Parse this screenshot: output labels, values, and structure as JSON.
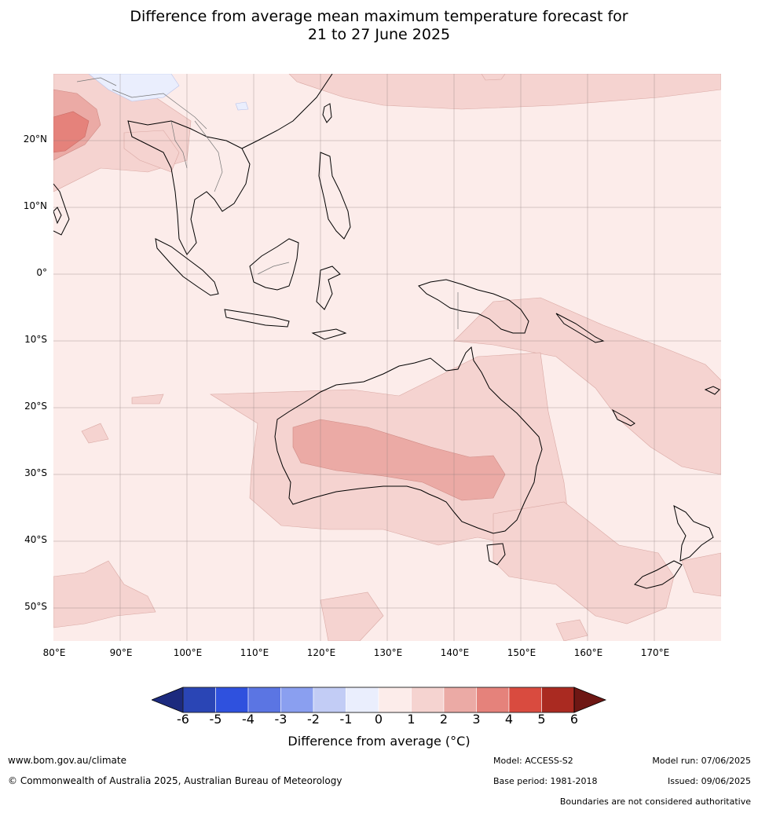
{
  "title_line1": "Difference from average mean maximum temperature forecast for",
  "title_line2": "21 to 27 June 2025",
  "lat_labels": [
    "20°N",
    "10°N",
    "0°",
    "10°S",
    "20°S",
    "30°S",
    "40°S",
    "50°S"
  ],
  "lon_labels": [
    "80°E",
    "90°E",
    "100°E",
    "110°E",
    "120°E",
    "130°E",
    "140°E",
    "150°E",
    "160°E",
    "170°E"
  ],
  "colorbar": {
    "ticks": [
      "-6",
      "-5",
      "-4",
      "-3",
      "-2",
      "-1",
      "0",
      "1",
      "2",
      "3",
      "4",
      "5",
      "6"
    ],
    "colors": [
      "#1c2a7e",
      "#2a45b5",
      "#2f51de",
      "#5b75e3",
      "#8a9ff0",
      "#c2ccf5",
      "#eaeefd",
      "#fcecea",
      "#f5d3d0",
      "#ebaaa5",
      "#e5827b",
      "#d94b3f",
      "#aa2a21",
      "#6e1714"
    ],
    "label": "Difference from average (°C)"
  },
  "footer": {
    "website": "www.bom.gov.au/climate",
    "copyright": "© Commonwealth of Australia 2025, Australian Bureau of Meteorology",
    "model": "Model: ACCESS-S2",
    "base_period": "Base period: 1981-2018",
    "model_run": "Model run: 07/06/2025",
    "issued": "Issued: 09/06/2025",
    "disclaimer": "Boundaries are not considered authoritative"
  }
}
